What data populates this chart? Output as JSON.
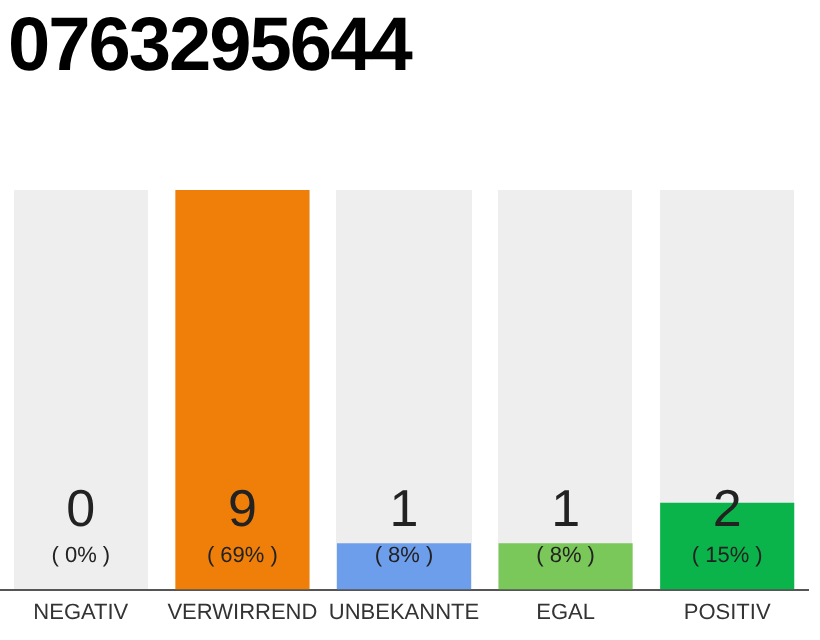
{
  "chart_data": {
    "type": "bar",
    "title": "0763295644",
    "categories": [
      "NEGATIV",
      "VERWIRREND",
      "UNBEKANNTE",
      "EGAL",
      "POSITIV"
    ],
    "values": [
      0,
      69,
      8,
      8,
      15
    ],
    "colors": [
      "#9e9e9e",
      "#f07f0a",
      "#6d9eeb",
      "#7ac75a",
      "#0bb44a"
    ],
    "value_labels": [
      "( 0% )",
      "( 69% )",
      "( 8% )",
      "( 8% )",
      "( 15% )"
    ],
    "annotations": [
      "0",
      "9",
      "1",
      "1",
      "2"
    ],
    "tick_labels": "x",
    "legend": false
  }
}
